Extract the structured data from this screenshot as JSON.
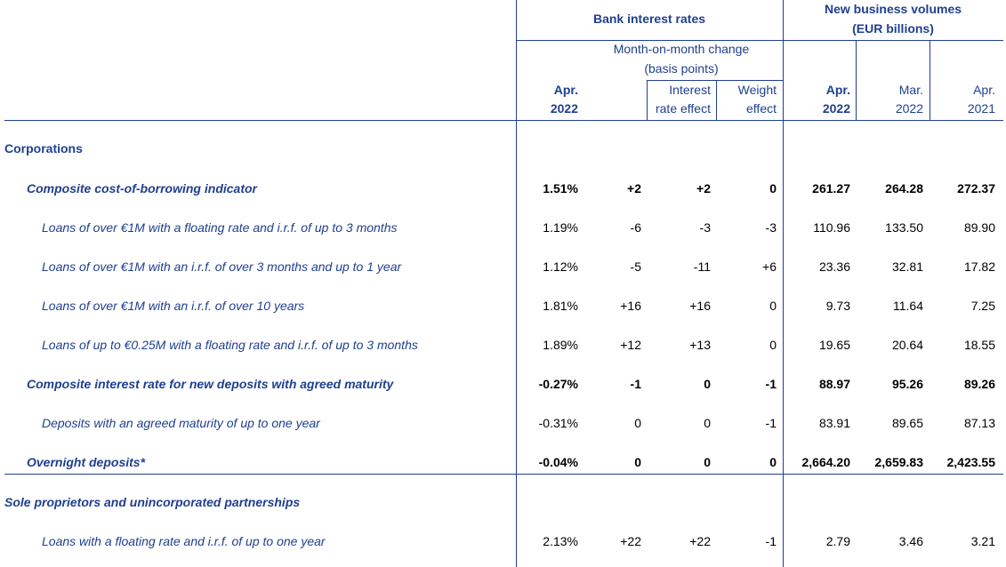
{
  "header": {
    "bank_rates": "Bank interest rates",
    "new_business_line1": "New business volumes",
    "new_business_line2": "(EUR billions)",
    "mom_line1": "Month-on-month change",
    "mom_line2": "(basis points)",
    "col_rate_1": "Apr.",
    "col_rate_2": "2022",
    "col_ire_1": "Interest",
    "col_ire_2": "rate effect",
    "col_we_1": "Weight",
    "col_we_2": "effect",
    "col_v1_1": "Apr.",
    "col_v1_2": "2022",
    "col_v2_1": "Mar.",
    "col_v2_2": "2022",
    "col_v3_1": "Apr.",
    "col_v3_2": "2021"
  },
  "sections": [
    {
      "label": "Corporations"
    },
    {
      "label": "Sole proprietors and unincorporated partnerships"
    }
  ],
  "rows": [
    {
      "label": "Composite cost-of-borrowing indicator",
      "bold": true,
      "rate": "1.51%",
      "mom": "+2",
      "ire": "+2",
      "we": "0",
      "v1": "261.27",
      "v2": "264.28",
      "v3": "272.37"
    },
    {
      "label": "Loans of over €1M with a floating rate and i.r.f. of up to 3 months",
      "bold": false,
      "rate": "1.19%",
      "mom": "-6",
      "ire": "-3",
      "we": "-3",
      "v1": "110.96",
      "v2": "133.50",
      "v3": "89.90"
    },
    {
      "label": "Loans of over €1M with an i.r.f. of over 3 months and up to 1 year",
      "bold": false,
      "rate": "1.12%",
      "mom": "-5",
      "ire": "-11",
      "we": "+6",
      "v1": "23.36",
      "v2": "32.81",
      "v3": "17.82"
    },
    {
      "label": "Loans of over €1M with an i.r.f. of over 10 years",
      "bold": false,
      "rate": "1.81%",
      "mom": "+16",
      "ire": "+16",
      "we": "0",
      "v1": "9.73",
      "v2": "11.64",
      "v3": "7.25"
    },
    {
      "label": "Loans of up to €0.25M with a floating rate and i.r.f. of up to 3 months",
      "bold": false,
      "rate": "1.89%",
      "mom": "+12",
      "ire": "+13",
      "we": "0",
      "v1": "19.65",
      "v2": "20.64",
      "v3": "18.55"
    },
    {
      "label": "Composite interest rate for new deposits with agreed maturity",
      "bold": true,
      "rate": "-0.27%",
      "mom": "-1",
      "ire": "0",
      "we": "-1",
      "v1": "88.97",
      "v2": "95.26",
      "v3": "89.26"
    },
    {
      "label": "Deposits with an agreed maturity of up to one year",
      "bold": false,
      "rate": "-0.31%",
      "mom": "0",
      "ire": "0",
      "we": "-1",
      "v1": "83.91",
      "v2": "89.65",
      "v3": "87.13"
    },
    {
      "label": "Overnight deposits*",
      "bold": true,
      "rate": "-0.04%",
      "mom": "0",
      "ire": "0",
      "we": "0",
      "v1": "2,664.20",
      "v2": "2,659.83",
      "v3": "2,423.55"
    },
    {
      "label": "Loans with a floating rate and i.r.f. of up to one year",
      "bold": false,
      "rate": "2.13%",
      "mom": "+22",
      "ire": "+22",
      "we": "-1",
      "v1": "2.79",
      "v2": "3.46",
      "v3": "3.21"
    }
  ],
  "colors": {
    "text": "#1f3f8f",
    "numbers": "#000000",
    "lines": "#1f3f8f"
  }
}
